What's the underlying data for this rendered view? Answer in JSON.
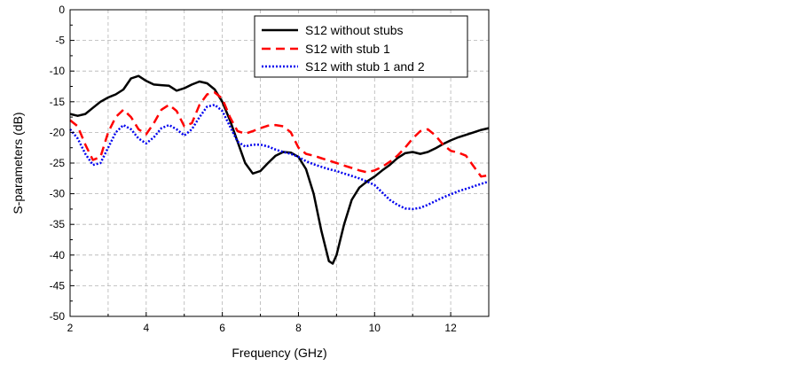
{
  "chart_data": {
    "type": "line",
    "xlabel": "Frequency (GHz)",
    "ylabel": "S-parameters  (dB)",
    "xlim": [
      2,
      13
    ],
    "ylim": [
      -50,
      0
    ],
    "xticks": [
      2,
      4,
      6,
      8,
      10,
      12
    ],
    "yticks": [
      0,
      -5,
      -10,
      -15,
      -20,
      -25,
      -30,
      -35,
      -40,
      -45,
      -50
    ],
    "grid": true,
    "legend_position": "top-right",
    "series": [
      {
        "name": "S12 without stubs",
        "color": "#000000",
        "style": "solid",
        "points": [
          [
            2.0,
            -17.0
          ],
          [
            2.2,
            -17.3
          ],
          [
            2.4,
            -17.0
          ],
          [
            2.6,
            -16.0
          ],
          [
            2.8,
            -15.0
          ],
          [
            3.0,
            -14.3
          ],
          [
            3.2,
            -13.8
          ],
          [
            3.4,
            -13.0
          ],
          [
            3.6,
            -11.2
          ],
          [
            3.8,
            -10.8
          ],
          [
            4.0,
            -11.6
          ],
          [
            4.2,
            -12.2
          ],
          [
            4.4,
            -12.3
          ],
          [
            4.6,
            -12.4
          ],
          [
            4.8,
            -13.2
          ],
          [
            5.0,
            -12.8
          ],
          [
            5.2,
            -12.2
          ],
          [
            5.4,
            -11.7
          ],
          [
            5.6,
            -12.0
          ],
          [
            5.8,
            -13.0
          ],
          [
            6.0,
            -15.0
          ],
          [
            6.2,
            -18.0
          ],
          [
            6.4,
            -21.5
          ],
          [
            6.6,
            -25.0
          ],
          [
            6.8,
            -26.7
          ],
          [
            7.0,
            -26.3
          ],
          [
            7.2,
            -25.0
          ],
          [
            7.4,
            -23.8
          ],
          [
            7.6,
            -23.2
          ],
          [
            7.8,
            -23.3
          ],
          [
            8.0,
            -24.0
          ],
          [
            8.2,
            -26.0
          ],
          [
            8.4,
            -30.0
          ],
          [
            8.6,
            -36.0
          ],
          [
            8.8,
            -41.0
          ],
          [
            8.9,
            -41.4
          ],
          [
            9.0,
            -40.0
          ],
          [
            9.2,
            -35.0
          ],
          [
            9.4,
            -31.0
          ],
          [
            9.6,
            -29.0
          ],
          [
            9.8,
            -28.0
          ],
          [
            10.0,
            -27.2
          ],
          [
            10.2,
            -26.2
          ],
          [
            10.4,
            -25.3
          ],
          [
            10.6,
            -24.2
          ],
          [
            10.8,
            -23.4
          ],
          [
            11.0,
            -23.2
          ],
          [
            11.2,
            -23.5
          ],
          [
            11.4,
            -23.2
          ],
          [
            11.6,
            -22.6
          ],
          [
            11.8,
            -21.9
          ],
          [
            12.0,
            -21.3
          ],
          [
            12.2,
            -20.8
          ],
          [
            12.4,
            -20.4
          ],
          [
            12.6,
            -20.0
          ],
          [
            12.8,
            -19.6
          ],
          [
            13.0,
            -19.3
          ]
        ]
      },
      {
        "name": "S12 with stub 1",
        "color": "#ff0000",
        "style": "dashed",
        "points": [
          [
            2.0,
            -18.0
          ],
          [
            2.2,
            -19.0
          ],
          [
            2.4,
            -22.0
          ],
          [
            2.6,
            -24.5
          ],
          [
            2.8,
            -24.0
          ],
          [
            3.0,
            -20.0
          ],
          [
            3.2,
            -17.5
          ],
          [
            3.4,
            -16.3
          ],
          [
            3.6,
            -17.5
          ],
          [
            3.8,
            -19.5
          ],
          [
            4.0,
            -20.3
          ],
          [
            4.2,
            -18.5
          ],
          [
            4.4,
            -16.3
          ],
          [
            4.6,
            -15.5
          ],
          [
            4.8,
            -16.5
          ],
          [
            5.0,
            -19.0
          ],
          [
            5.2,
            -18.5
          ],
          [
            5.4,
            -15.5
          ],
          [
            5.6,
            -13.8
          ],
          [
            5.8,
            -13.5
          ],
          [
            6.0,
            -14.5
          ],
          [
            6.2,
            -17.5
          ],
          [
            6.4,
            -19.8
          ],
          [
            6.6,
            -20.2
          ],
          [
            6.8,
            -19.8
          ],
          [
            7.0,
            -19.3
          ],
          [
            7.2,
            -18.9
          ],
          [
            7.4,
            -18.8
          ],
          [
            7.6,
            -19.0
          ],
          [
            7.8,
            -20.0
          ],
          [
            8.0,
            -22.5
          ],
          [
            8.2,
            -23.5
          ],
          [
            8.4,
            -23.8
          ],
          [
            8.6,
            -24.2
          ],
          [
            8.8,
            -24.6
          ],
          [
            9.0,
            -25.0
          ],
          [
            9.2,
            -25.4
          ],
          [
            9.4,
            -25.8
          ],
          [
            9.6,
            -26.2
          ],
          [
            9.8,
            -26.5
          ],
          [
            10.0,
            -26.2
          ],
          [
            10.2,
            -25.6
          ],
          [
            10.4,
            -24.8
          ],
          [
            10.6,
            -23.8
          ],
          [
            10.8,
            -22.5
          ],
          [
            11.0,
            -21.0
          ],
          [
            11.2,
            -19.8
          ],
          [
            11.4,
            -19.5
          ],
          [
            11.6,
            -20.5
          ],
          [
            11.8,
            -22.0
          ],
          [
            12.0,
            -23.0
          ],
          [
            12.2,
            -23.3
          ],
          [
            12.4,
            -23.8
          ],
          [
            12.6,
            -25.5
          ],
          [
            12.8,
            -27.2
          ],
          [
            13.0,
            -27.0
          ]
        ]
      },
      {
        "name": "S12 with stub 1 and 2",
        "color": "#0000ee",
        "style": "dotted",
        "points": [
          [
            2.0,
            -19.5
          ],
          [
            2.2,
            -21.0
          ],
          [
            2.4,
            -23.5
          ],
          [
            2.6,
            -25.3
          ],
          [
            2.8,
            -25.0
          ],
          [
            3.0,
            -22.5
          ],
          [
            3.2,
            -20.0
          ],
          [
            3.4,
            -18.8
          ],
          [
            3.6,
            -19.5
          ],
          [
            3.8,
            -21.0
          ],
          [
            4.0,
            -21.8
          ],
          [
            4.2,
            -20.8
          ],
          [
            4.4,
            -19.3
          ],
          [
            4.6,
            -18.8
          ],
          [
            4.8,
            -19.5
          ],
          [
            5.0,
            -20.5
          ],
          [
            5.2,
            -19.5
          ],
          [
            5.4,
            -17.5
          ],
          [
            5.6,
            -15.8
          ],
          [
            5.8,
            -15.5
          ],
          [
            6.0,
            -16.5
          ],
          [
            6.2,
            -19.0
          ],
          [
            6.4,
            -21.5
          ],
          [
            6.6,
            -22.3
          ],
          [
            6.8,
            -22.0
          ],
          [
            7.0,
            -22.0
          ],
          [
            7.2,
            -22.3
          ],
          [
            7.4,
            -22.8
          ],
          [
            7.6,
            -23.2
          ],
          [
            7.8,
            -23.5
          ],
          [
            8.0,
            -24.0
          ],
          [
            8.2,
            -24.7
          ],
          [
            8.4,
            -25.2
          ],
          [
            8.6,
            -25.6
          ],
          [
            8.8,
            -26.0
          ],
          [
            9.0,
            -26.3
          ],
          [
            9.2,
            -26.7
          ],
          [
            9.4,
            -27.1
          ],
          [
            9.6,
            -27.5
          ],
          [
            9.8,
            -28.0
          ],
          [
            10.0,
            -28.6
          ],
          [
            10.2,
            -29.8
          ],
          [
            10.4,
            -31.0
          ],
          [
            10.6,
            -31.8
          ],
          [
            10.8,
            -32.4
          ],
          [
            11.0,
            -32.5
          ],
          [
            11.2,
            -32.3
          ],
          [
            11.4,
            -31.8
          ],
          [
            11.6,
            -31.2
          ],
          [
            11.8,
            -30.6
          ],
          [
            12.0,
            -30.1
          ],
          [
            12.2,
            -29.6
          ],
          [
            12.4,
            -29.2
          ],
          [
            12.6,
            -28.8
          ],
          [
            12.8,
            -28.4
          ],
          [
            13.0,
            -28.0
          ]
        ]
      }
    ]
  }
}
